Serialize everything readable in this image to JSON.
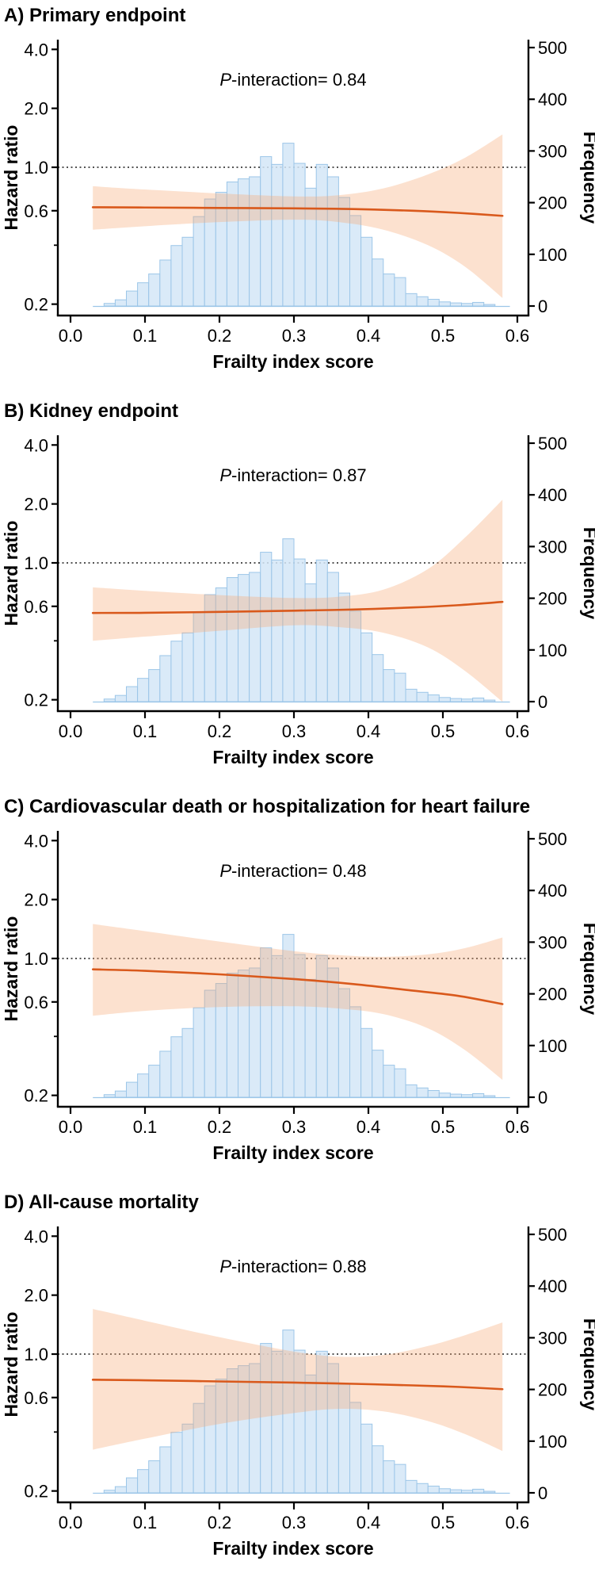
{
  "figure_title": "Hazard ratio and frequency across frailty index score, four endpoints",
  "chart_data": {
    "type": "composite-panels",
    "description": "Four stacked panels; each shows a restricted-cubic-spline hazard ratio curve (log scale, left axis) with 95% CI band over frailty index score, overlaid on a histogram of frailty index frequency (right axis).",
    "axes": {
      "x": {
        "label": "Frailty index score",
        "tick_values": [
          0.0,
          0.1,
          0.2,
          0.3,
          0.4,
          0.5,
          0.6
        ],
        "tick_labels": [
          "0.0",
          "0.1",
          "0.2",
          "0.3",
          "0.4",
          "0.5",
          "0.6"
        ],
        "range": [
          0.0,
          0.62
        ]
      },
      "y_left": {
        "label": "Hazard ratio",
        "scale": "log",
        "tick_values": [
          4.0,
          2.0,
          1.0,
          0.6,
          0.2
        ],
        "tick_labels": [
          "4.0",
          "2.0",
          "1.0",
          "0.6",
          "0.2"
        ],
        "minor_tick_values": [
          0.4
        ],
        "reference_line": 1.0
      },
      "y_right": {
        "label": "Frequency",
        "tick_values": [
          500,
          400,
          300,
          200,
          100,
          0
        ],
        "tick_labels": [
          "500",
          "400",
          "300",
          "200",
          "100",
          "0"
        ],
        "range": [
          0,
          500
        ]
      }
    },
    "histogram": {
      "bin_left_edge_start": 0.045,
      "bin_width": 0.015,
      "frequencies": [
        5,
        12,
        29,
        45,
        62,
        89,
        117,
        133,
        173,
        207,
        220,
        240,
        246,
        250,
        289,
        274,
        315,
        276,
        228,
        274,
        250,
        210,
        175,
        133,
        91,
        62,
        55,
        24,
        18,
        13,
        8,
        6,
        5,
        7,
        3
      ]
    },
    "panels": [
      {
        "label": "A",
        "title": "A) Primary endpoint",
        "p_prefix": "P",
        "p_text": "-interaction= 0.84",
        "p_interaction": "0.84",
        "hr_line": {
          "x": [
            0.03,
            0.1,
            0.2,
            0.3,
            0.38,
            0.46,
            0.52,
            0.58
          ],
          "hr": [
            0.625,
            0.623,
            0.62,
            0.617,
            0.612,
            0.6,
            0.585,
            0.565
          ]
        },
        "ci_band": {
          "x": [
            0.03,
            0.1,
            0.2,
            0.3,
            0.36,
            0.42,
            0.48,
            0.53,
            0.58
          ],
          "upper": [
            0.8,
            0.77,
            0.735,
            0.71,
            0.72,
            0.78,
            0.92,
            1.12,
            1.47
          ],
          "lower": [
            0.48,
            0.5,
            0.525,
            0.54,
            0.525,
            0.48,
            0.4,
            0.31,
            0.215
          ]
        }
      },
      {
        "label": "B",
        "title": "B) Kidney endpoint",
        "p_prefix": "P",
        "p_text": "-interaction= 0.87",
        "p_interaction": "0.87",
        "hr_line": {
          "x": [
            0.03,
            0.1,
            0.2,
            0.3,
            0.38,
            0.46,
            0.52,
            0.58
          ],
          "hr": [
            0.555,
            0.556,
            0.562,
            0.57,
            0.578,
            0.592,
            0.608,
            0.632
          ]
        },
        "ci_band": {
          "x": [
            0.03,
            0.1,
            0.2,
            0.3,
            0.36,
            0.42,
            0.48,
            0.53,
            0.58
          ],
          "upper": [
            0.75,
            0.72,
            0.685,
            0.662,
            0.672,
            0.73,
            0.93,
            1.35,
            2.1
          ],
          "lower": [
            0.4,
            0.42,
            0.45,
            0.48,
            0.47,
            0.44,
            0.37,
            0.28,
            0.195
          ]
        }
      },
      {
        "label": "C",
        "title": "C) Cardiovascular death or hospitalization for heart failure",
        "p_prefix": "P",
        "p_text": "-interaction= 0.48",
        "p_interaction": "0.48",
        "hr_line": {
          "x": [
            0.03,
            0.1,
            0.2,
            0.3,
            0.38,
            0.46,
            0.52,
            0.58
          ],
          "hr": [
            0.88,
            0.865,
            0.83,
            0.785,
            0.74,
            0.685,
            0.645,
            0.585
          ]
        },
        "ci_band": {
          "x": [
            0.03,
            0.1,
            0.2,
            0.3,
            0.36,
            0.42,
            0.48,
            0.53,
            0.58
          ],
          "upper": [
            1.5,
            1.38,
            1.22,
            1.09,
            1.04,
            1.02,
            1.05,
            1.13,
            1.28
          ],
          "lower": [
            0.51,
            0.54,
            0.565,
            0.57,
            0.555,
            0.52,
            0.44,
            0.34,
            0.24
          ]
        }
      },
      {
        "label": "D",
        "title": "D) All-cause mortality",
        "p_prefix": "P",
        "p_text": "-interaction= 0.88",
        "p_interaction": "0.88",
        "hr_line": {
          "x": [
            0.03,
            0.1,
            0.2,
            0.3,
            0.38,
            0.46,
            0.52,
            0.58
          ],
          "hr": [
            0.74,
            0.735,
            0.725,
            0.715,
            0.705,
            0.692,
            0.68,
            0.662
          ]
        },
        "ci_band": {
          "x": [
            0.03,
            0.1,
            0.2,
            0.3,
            0.36,
            0.42,
            0.48,
            0.53,
            0.58
          ],
          "upper": [
            1.7,
            1.48,
            1.22,
            1.03,
            0.97,
            0.99,
            1.1,
            1.25,
            1.45
          ],
          "lower": [
            0.325,
            0.37,
            0.44,
            0.5,
            0.525,
            0.51,
            0.455,
            0.39,
            0.32
          ]
        }
      }
    ],
    "colors": {
      "hr_line": "#d9591c",
      "ci_band": "#f6a876",
      "histogram_fill": "#d3e6f7",
      "histogram_stroke": "#9cc6e8",
      "reference_line": "#1a1a1a",
      "axis": "#000000",
      "text": "#000000"
    }
  }
}
